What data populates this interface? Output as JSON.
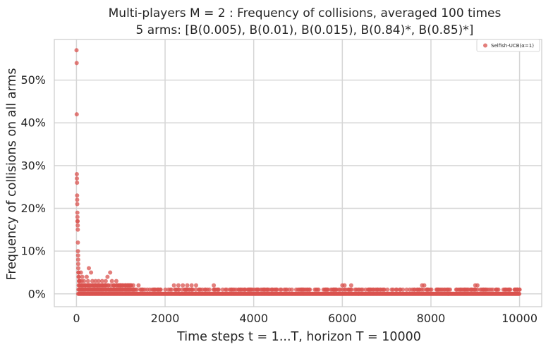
{
  "chart_data": {
    "type": "scatter",
    "title": "Multi-players M = 2 : Frequency of collisions, averaged 100 times",
    "subtitle": "5 arms: [B(0.005), B(0.01), B(0.015), B(0.84)*, B(0.85)*]",
    "xlabel": "Time steps t = 1...T, horizon T = 10000",
    "ylabel": "Frequency of collisions on all arms",
    "xlim": [
      -500,
      10500
    ],
    "ylim": [
      -0.03,
      0.595
    ],
    "x_ticks": [
      0,
      2000,
      4000,
      6000,
      8000,
      10000
    ],
    "x_tick_labels": [
      "0",
      "2000",
      "4000",
      "6000",
      "8000",
      "10000"
    ],
    "y_ticks": [
      0,
      0.1,
      0.2,
      0.3,
      0.4,
      0.5
    ],
    "y_tick_labels": [
      "0%",
      "10%",
      "20%",
      "30%",
      "40%",
      "50%"
    ],
    "grid": true,
    "legend_position": "top-right",
    "marker_color": "#d9534f",
    "series": [
      {
        "name": "Selfish-UCB(α=1)",
        "points": [
          [
            2,
            0.57
          ],
          [
            4,
            0.54
          ],
          [
            6,
            0.42
          ],
          [
            8,
            0.28
          ],
          [
            10,
            0.27
          ],
          [
            12,
            0.26
          ],
          [
            14,
            0.23
          ],
          [
            16,
            0.22
          ],
          [
            18,
            0.21
          ],
          [
            20,
            0.19
          ],
          [
            22,
            0.18
          ],
          [
            24,
            0.17
          ],
          [
            26,
            0.17
          ],
          [
            28,
            0.16
          ],
          [
            30,
            0.15
          ],
          [
            32,
            0.12
          ],
          [
            34,
            0.1
          ],
          [
            36,
            0.09
          ],
          [
            38,
            0.08
          ],
          [
            40,
            0.07
          ],
          [
            42,
            0.06
          ],
          [
            44,
            0.05
          ],
          [
            46,
            0.05
          ],
          [
            48,
            0.04
          ],
          [
            50,
            0.04
          ],
          [
            55,
            0.03
          ],
          [
            60,
            0.03
          ],
          [
            65,
            0.02
          ],
          [
            70,
            0.02
          ],
          [
            80,
            0.03
          ],
          [
            90,
            0.02
          ],
          [
            100,
            0.05
          ],
          [
            110,
            0.02
          ],
          [
            120,
            0.03
          ],
          [
            130,
            0.04
          ],
          [
            150,
            0.02
          ],
          [
            170,
            0.03
          ],
          [
            200,
            0.02
          ],
          [
            230,
            0.04
          ],
          [
            260,
            0.03
          ],
          [
            280,
            0.06
          ],
          [
            300,
            0.02
          ],
          [
            330,
            0.05
          ],
          [
            360,
            0.03
          ],
          [
            400,
            0.02
          ],
          [
            430,
            0.03
          ],
          [
            470,
            0.02
          ],
          [
            500,
            0.03
          ],
          [
            540,
            0.02
          ],
          [
            580,
            0.03
          ],
          [
            620,
            0.02
          ],
          [
            660,
            0.03
          ],
          [
            700,
            0.04
          ],
          [
            760,
            0.05
          ],
          [
            800,
            0.03
          ],
          [
            850,
            0.02
          ],
          [
            900,
            0.03
          ],
          [
            950,
            0.02
          ],
          [
            1000,
            0.02
          ],
          [
            1100,
            0.02
          ],
          [
            1200,
            0.02
          ],
          [
            1300,
            0.01
          ],
          [
            1400,
            0.02
          ],
          [
            1900,
            0.01
          ],
          [
            2200,
            0.02
          ],
          [
            2300,
            0.02
          ],
          [
            2400,
            0.02
          ],
          [
            2500,
            0.02
          ],
          [
            2600,
            0.02
          ],
          [
            2700,
            0.02
          ],
          [
            2800,
            0.01
          ],
          [
            3000,
            0.01
          ],
          [
            3100,
            0.02
          ],
          [
            3300,
            0.01
          ],
          [
            3600,
            0.01
          ],
          [
            4300,
            0.01
          ],
          [
            4600,
            0.01
          ],
          [
            5100,
            0.01
          ],
          [
            5800,
            0.01
          ],
          [
            6000,
            0.02
          ],
          [
            6050,
            0.02
          ],
          [
            6200,
            0.02
          ],
          [
            6900,
            0.01
          ],
          [
            7700,
            0.01
          ],
          [
            7800,
            0.02
          ],
          [
            7850,
            0.02
          ],
          [
            8300,
            0.01
          ],
          [
            8400,
            0.01
          ],
          [
            8900,
            0.01
          ],
          [
            8950,
            0.01
          ],
          [
            9000,
            0.02
          ],
          [
            9050,
            0.02
          ],
          [
            9900,
            0.01
          ],
          [
            9950,
            0.01
          ],
          [
            10000,
            0.01
          ]
        ]
      }
    ]
  }
}
